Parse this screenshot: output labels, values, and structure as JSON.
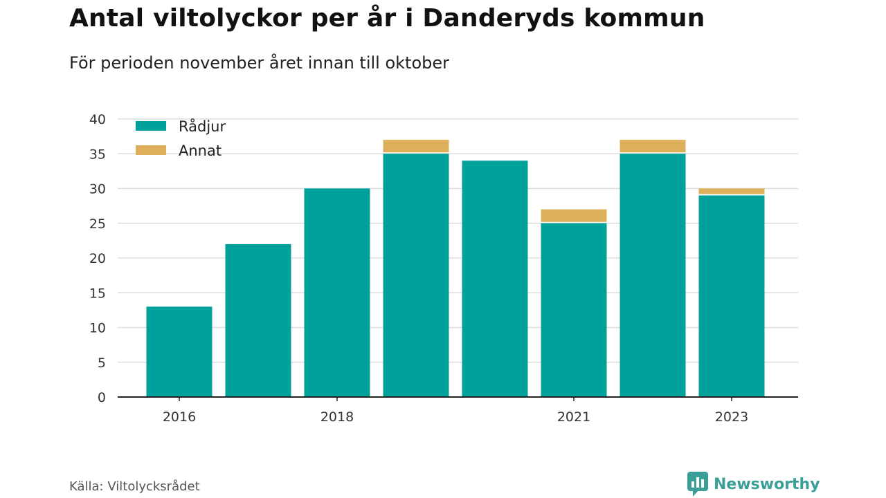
{
  "header": {
    "title": "Antal viltolyckor per år i Danderyds kommun",
    "subtitle": "För perioden november året innan till oktober"
  },
  "footer": {
    "source": "Källa: Viltolycksrådet",
    "brand": "Newsworthy",
    "brand_icon": "bar-chart-speech-bubble-icon"
  },
  "colors": {
    "radjur": "#00a19a",
    "annat": "#dcaf5a",
    "grid": "#dddddd",
    "axis": "#222222",
    "brand": "#3b9f98"
  },
  "chart_data": {
    "type": "bar",
    "stacked": true,
    "categories": [
      2016,
      2017,
      2018,
      2019,
      2020,
      2021,
      2022,
      2023
    ],
    "x_tick_labels": [
      "2016",
      "2018",
      "2021",
      "2023"
    ],
    "series": [
      {
        "name": "Rådjur",
        "values": [
          13,
          22,
          30,
          35,
          34,
          25,
          35,
          29
        ]
      },
      {
        "name": "Annat",
        "values": [
          0,
          0,
          0,
          2,
          0,
          2,
          2,
          1
        ]
      }
    ],
    "ylim": [
      0,
      40
    ],
    "yticks": [
      0,
      5,
      10,
      15,
      20,
      25,
      30,
      35,
      40
    ],
    "grid": true,
    "legend_position": "top-left"
  }
}
